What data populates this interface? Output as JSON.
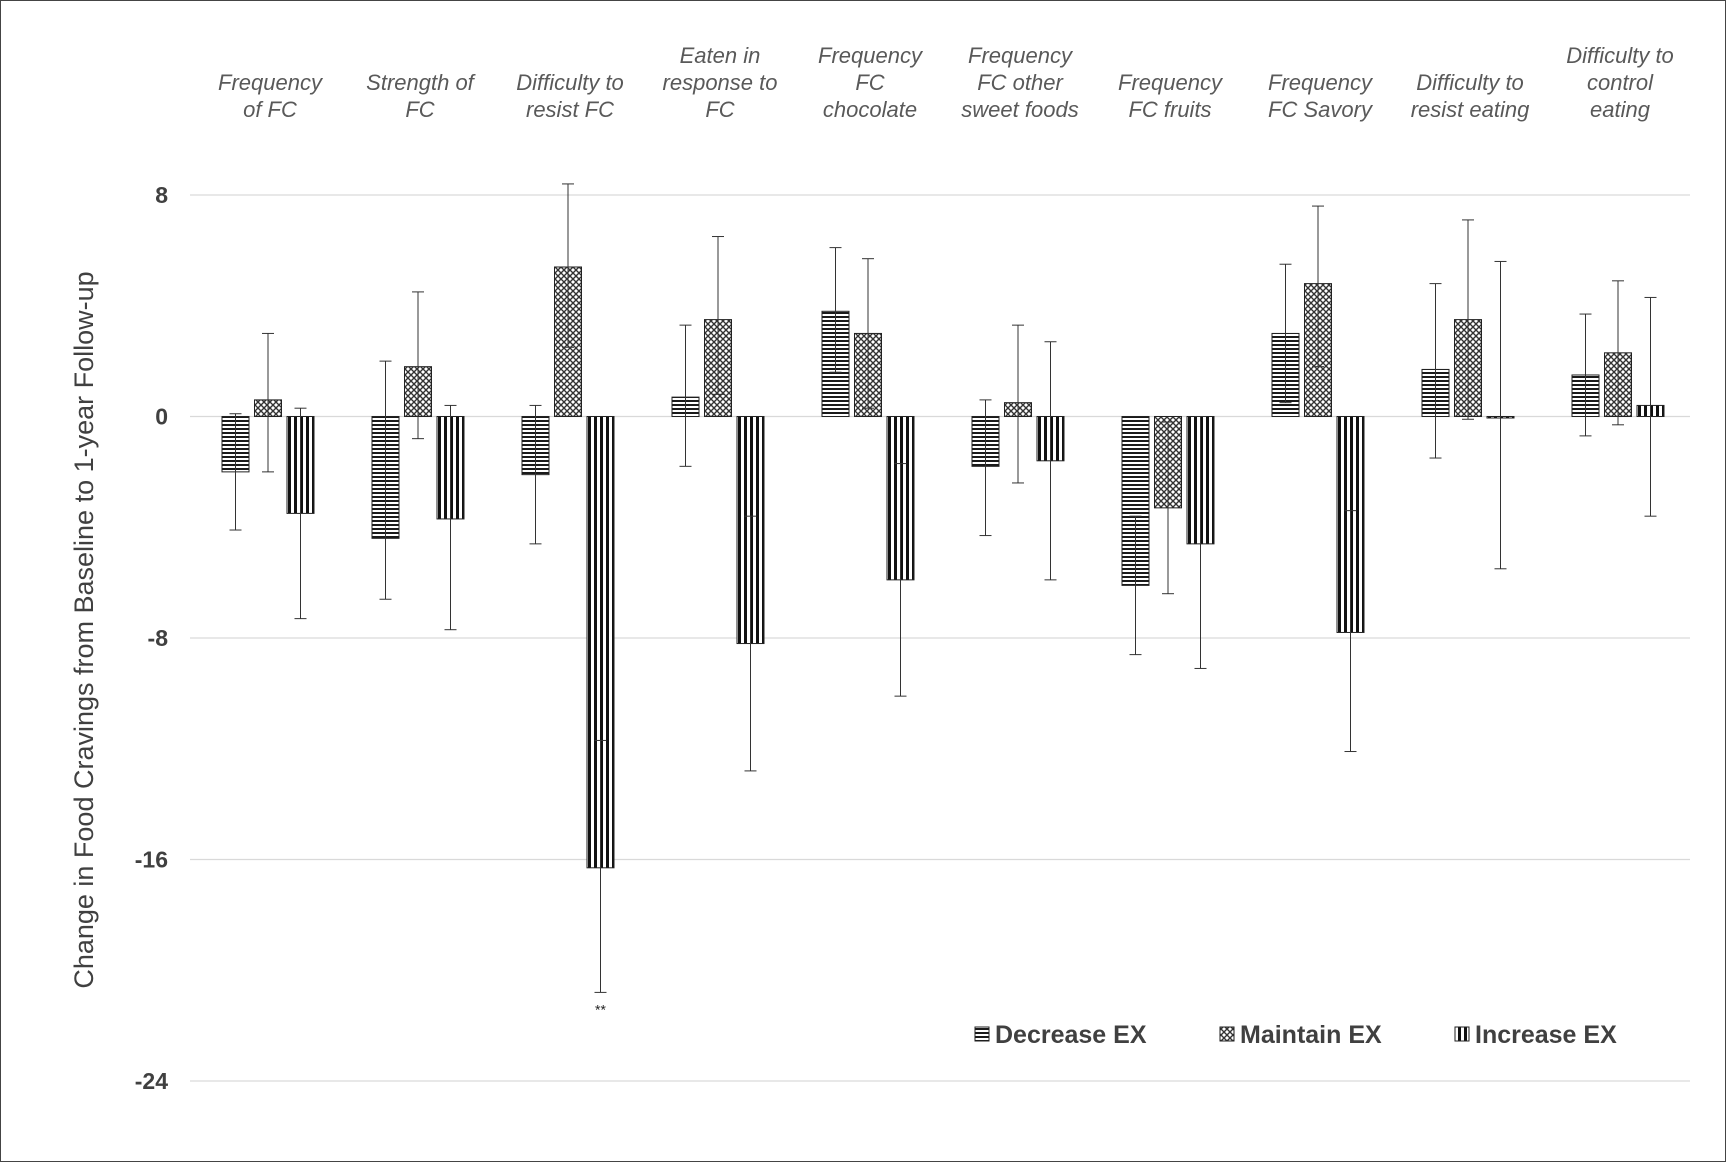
{
  "chart_data": {
    "type": "bar",
    "title": "",
    "ylabel": "Change in Food Cravings from Baseline to 1-year Follow-up",
    "xlabel": "",
    "ylim": [
      -24,
      8
    ],
    "yticks": [
      8,
      0,
      -8,
      -16,
      -24
    ],
    "ytick_labels": [
      "8",
      "0",
      "-8",
      "-16",
      "-24"
    ],
    "grid": true,
    "legend_position": "bottom-right",
    "categories": [
      [
        "Frequency",
        "of FC"
      ],
      [
        "Strength of",
        "FC"
      ],
      [
        "Difficulty to",
        "resist FC"
      ],
      [
        "Eaten in",
        "response to",
        "FC"
      ],
      [
        "Frequency",
        "FC",
        "chocolate"
      ],
      [
        "Frequency",
        "FC other",
        "sweet foods"
      ],
      [
        "Frequency",
        "FC fruits"
      ],
      [
        "Frequency",
        "FC Savory"
      ],
      [
        "Difficulty to",
        "resist eating"
      ],
      [
        "Difficulty to",
        "control",
        "eating"
      ]
    ],
    "series": [
      {
        "name": "Decrease EX",
        "pattern": "horizontal-lines",
        "values": [
          -2.0,
          -4.4,
          -2.1,
          0.7,
          3.8,
          -1.8,
          -6.1,
          3.0,
          1.7,
          1.5
        ],
        "err_low": [
          -4.1,
          -6.6,
          -4.6,
          -1.8,
          1.6,
          -4.3,
          -8.6,
          0.5,
          -1.5,
          -0.7
        ],
        "err_high": [
          0.1,
          2.0,
          0.4,
          3.3,
          6.1,
          0.6,
          -3.6,
          5.5,
          4.8,
          3.7
        ]
      },
      {
        "name": "Maintain EX",
        "pattern": "crosshatch",
        "values": [
          0.6,
          1.8,
          5.4,
          3.5,
          3.0,
          0.5,
          -3.3,
          4.8,
          3.5,
          2.3
        ],
        "err_low": [
          -2.0,
          -0.8,
          2.5,
          0.8,
          0.3,
          -2.4,
          -6.4,
          1.8,
          -0.1,
          -0.3
        ],
        "err_high": [
          3.0,
          4.5,
          8.4,
          6.5,
          5.7,
          3.3,
          -0.2,
          7.6,
          7.1,
          4.9
        ]
      },
      {
        "name": "Increase EX",
        "pattern": "vertical-lines",
        "values": [
          -3.5,
          -3.7,
          -16.3,
          -8.2,
          -5.9,
          -1.6,
          -4.6,
          -7.8,
          0.0,
          0.4
        ],
        "err_low": [
          -7.3,
          -7.7,
          -20.8,
          -12.8,
          -10.1,
          -5.9,
          -9.1,
          -12.1,
          -5.5,
          -3.6
        ],
        "err_high": [
          0.3,
          0.4,
          -11.7,
          -3.6,
          -1.7,
          2.7,
          0.0,
          -3.4,
          5.6,
          4.3
        ]
      }
    ],
    "annotations": [
      {
        "category_index": 2,
        "series_index": 2,
        "text": "**"
      }
    ]
  }
}
